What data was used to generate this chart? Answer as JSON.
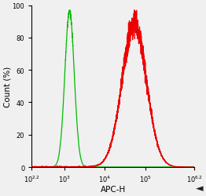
{
  "title": "",
  "xlabel": "APC-H",
  "ylabel": "Count (%)",
  "xlim_log": [
    2.2,
    6.2
  ],
  "ylim": [
    0,
    100
  ],
  "yticks": [
    0,
    20,
    40,
    60,
    80,
    100
  ],
  "green_peak_log": 3.13,
  "green_sigma_log": 0.115,
  "green_color": "#00bb00",
  "red_peak_log": 4.72,
  "red_sigma_log": 0.3,
  "red_color": "#ee0000",
  "background_color": "#f0f0f0",
  "plot_bg": "#f0f0f0",
  "arrow_color": "#222222",
  "noise_seed": 7
}
